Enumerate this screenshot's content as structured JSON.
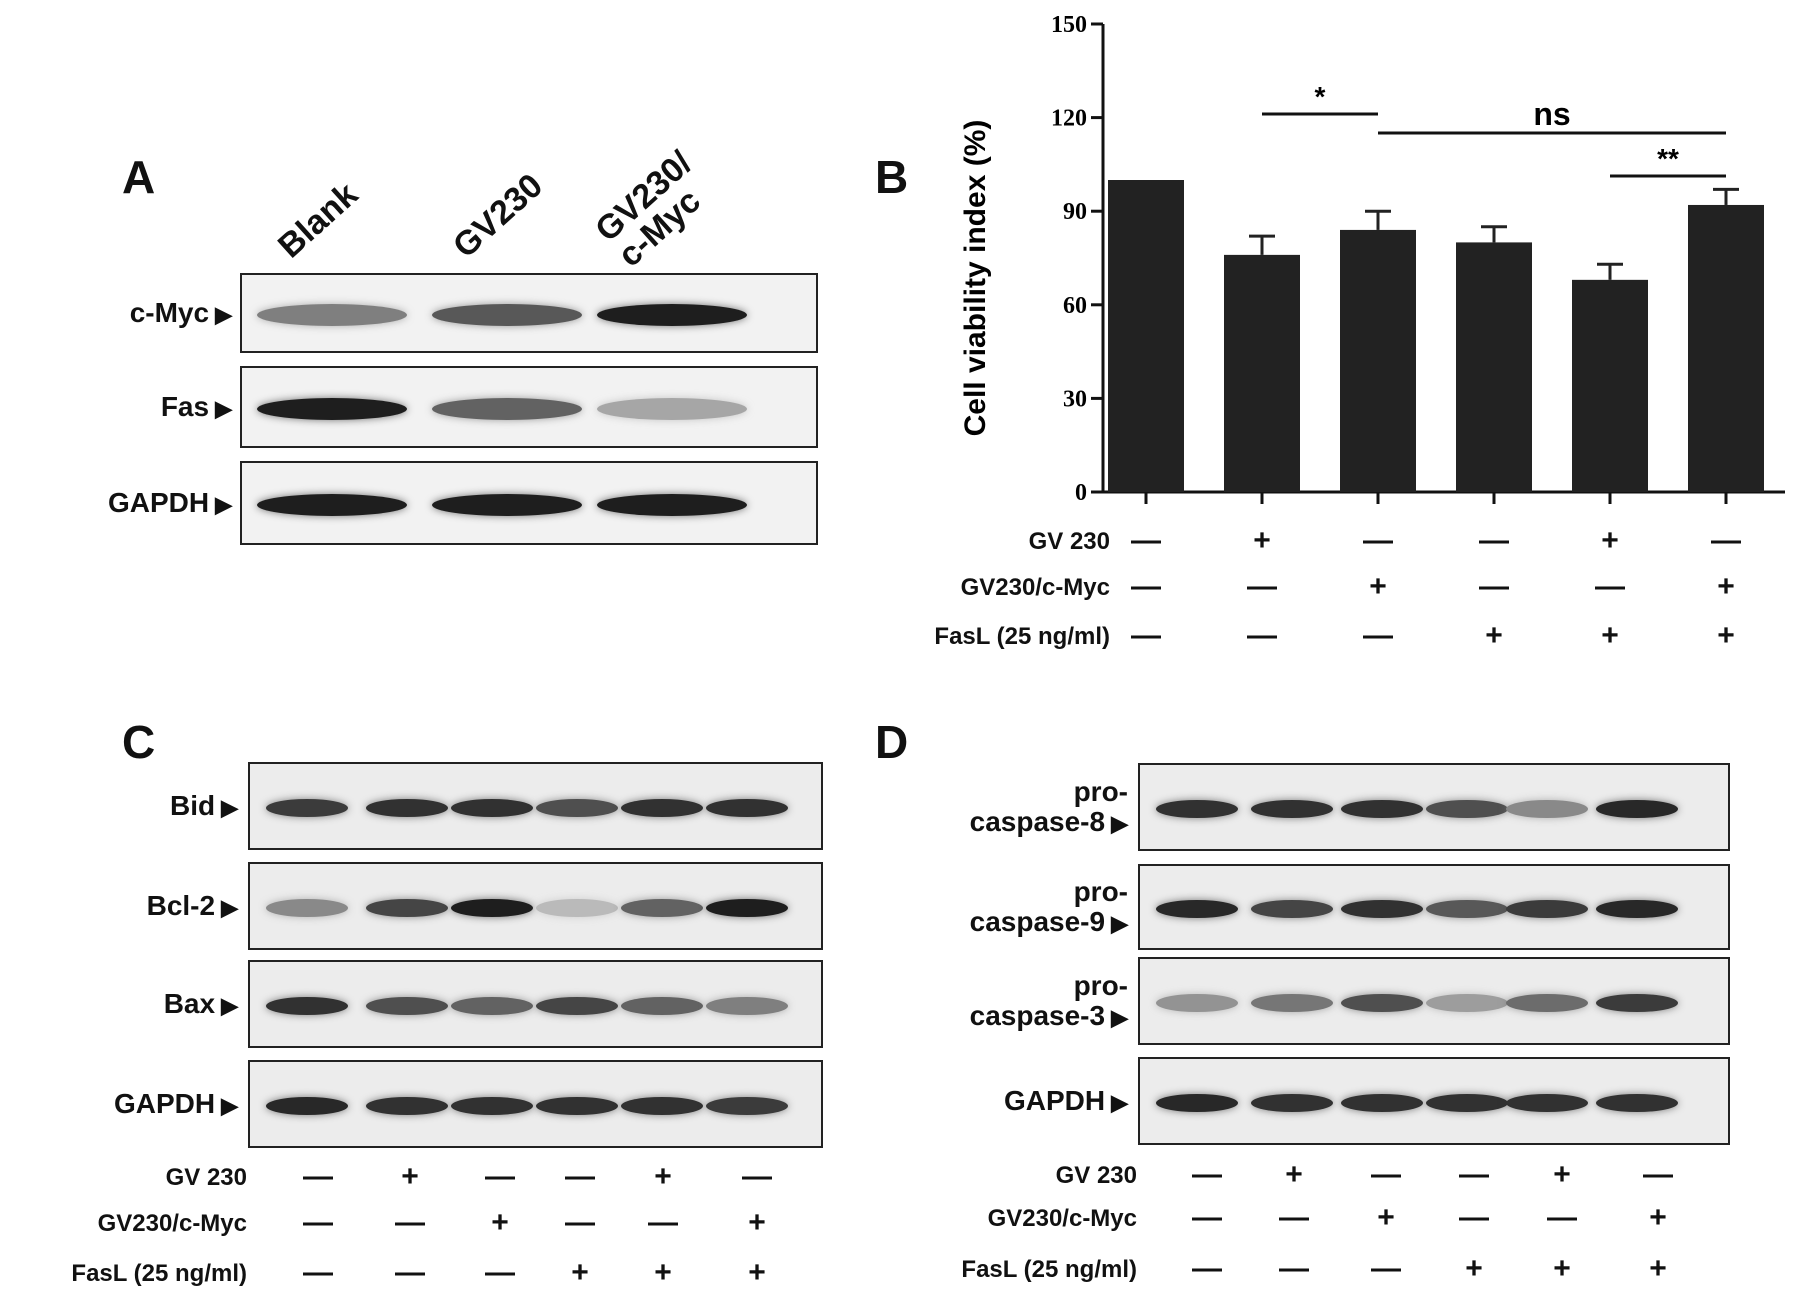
{
  "panels": {
    "A": {
      "letter": "A",
      "lanes": [
        "Blank",
        "GV230",
        "GV230/\nc-Myc"
      ],
      "blots": [
        {
          "label": "c-Myc",
          "intensity": [
            0.45,
            0.65,
            0.95
          ]
        },
        {
          "label": "Fas",
          "intensity": [
            0.95,
            0.6,
            0.25
          ]
        },
        {
          "label": "GAPDH",
          "intensity": [
            0.95,
            0.95,
            0.95
          ]
        }
      ]
    },
    "C": {
      "letter": "C",
      "blots": [
        {
          "label": "Bid",
          "intensity": [
            0.8,
            0.85,
            0.85,
            0.7,
            0.85,
            0.85
          ]
        },
        {
          "label": "Bcl-2",
          "intensity": [
            0.4,
            0.75,
            0.95,
            0.15,
            0.6,
            0.95
          ]
        },
        {
          "label": "Bax",
          "intensity": [
            0.85,
            0.7,
            0.6,
            0.75,
            0.6,
            0.45
          ]
        },
        {
          "label": "GAPDH",
          "intensity": [
            0.9,
            0.85,
            0.85,
            0.85,
            0.85,
            0.8
          ]
        }
      ],
      "treatments": [
        {
          "label": "GV 230",
          "signs": [
            "—",
            "+",
            "—",
            "—",
            "+",
            "—"
          ]
        },
        {
          "label": "GV230/c-Myc",
          "signs": [
            "—",
            "—",
            "+",
            "—",
            "—",
            "+"
          ]
        },
        {
          "label": "FasL (25 ng/ml)",
          "signs": [
            "—",
            "—",
            "—",
            "+",
            "+",
            "+"
          ]
        }
      ]
    },
    "D": {
      "letter": "D",
      "blots": [
        {
          "label": "pro-\ncaspase-8",
          "intensity": [
            0.85,
            0.85,
            0.85,
            0.7,
            0.4,
            0.9
          ]
        },
        {
          "label": "pro-\ncaspase-9",
          "intensity": [
            0.9,
            0.75,
            0.85,
            0.65,
            0.8,
            0.9
          ]
        },
        {
          "label": "pro-\ncaspase-3",
          "intensity": [
            0.35,
            0.5,
            0.7,
            0.3,
            0.55,
            0.8
          ]
        },
        {
          "label": "GAPDH",
          "intensity": [
            0.9,
            0.85,
            0.85,
            0.85,
            0.85,
            0.85
          ]
        }
      ],
      "treatments": [
        {
          "label": "GV 230",
          "signs": [
            "—",
            "+",
            "—",
            "—",
            "+",
            "—"
          ]
        },
        {
          "label": "GV230/c-Myc",
          "signs": [
            "—",
            "—",
            "+",
            "—",
            "—",
            "+"
          ]
        },
        {
          "label": "FasL (25 ng/ml)",
          "signs": [
            "—",
            "—",
            "—",
            "+",
            "+",
            "+"
          ]
        }
      ]
    }
  },
  "chart_data": {
    "type": "bar",
    "panel_letter": "B",
    "ylabel": "Cell viability index (%)",
    "ylim": [
      0,
      150
    ],
    "yticks": [
      0,
      30,
      60,
      90,
      120,
      150
    ],
    "values": [
      100,
      76,
      84,
      80,
      68,
      92
    ],
    "errors": [
      0,
      6,
      6,
      5,
      5,
      5
    ],
    "bar_color": "#222222",
    "significance": [
      {
        "from": 1,
        "to": 2,
        "label": "*"
      },
      {
        "from": 2,
        "to": 5,
        "label": "ns"
      },
      {
        "from": 4,
        "to": 5,
        "label": "**"
      }
    ],
    "treatments": [
      {
        "label": "GV 230",
        "signs": [
          "—",
          "+",
          "—",
          "—",
          "+",
          "—"
        ]
      },
      {
        "label": "GV230/c-Myc",
        "signs": [
          "—",
          "—",
          "+",
          "—",
          "—",
          "+"
        ]
      },
      {
        "label": "FasL (25 ng/ml)",
        "signs": [
          "—",
          "—",
          "—",
          "+",
          "+",
          "+"
        ]
      }
    ]
  }
}
